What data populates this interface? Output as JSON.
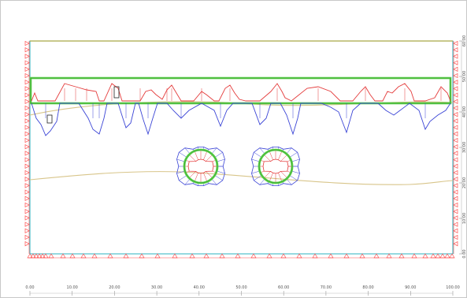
{
  "canvas": {
    "background": "#ffffff",
    "frame_color": "#c8c8c8"
  },
  "colors": {
    "support_red": "#ff4d4d",
    "boundary_cyan": "#2bb3c0",
    "surface_olive": "#a8a846",
    "water_line": "#d8c58a",
    "structure_green": "#5bd14a",
    "moment_red": "#e43b3b",
    "moment_blue": "#3b45d6",
    "tick_text": "#555555"
  },
  "x_axis": {
    "ticks": [
      "0.00",
      "10.00",
      "20.00",
      "30.00",
      "40.00",
      "50.00",
      "60.00",
      "70.00",
      "80.00",
      "90.00",
      "100.00"
    ]
  },
  "y_axis": {
    "ticks": [
      "0.00",
      "10.00",
      "20.00",
      "30.00",
      "40.00",
      "50.00",
      "60.00"
    ]
  },
  "icons": {
    "fixed_support": "triangle-support-icon",
    "roller_support": "triangle-roller-icon"
  }
}
